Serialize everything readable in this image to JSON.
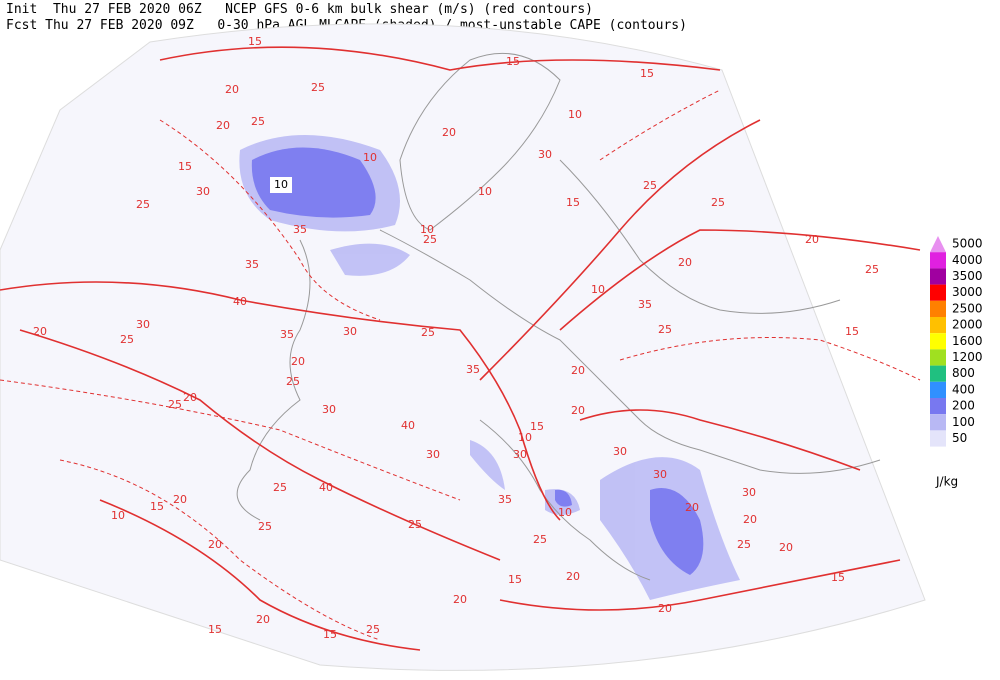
{
  "header": {
    "line1": "Init  Thu 27 FEB 2020 06Z   NCEP GFS 0-6 km bulk shear (m/s) (red contours)",
    "line2": "Fcst Thu 27 FEB 2020 09Z   0-30 hPa AGL MLCAPE (shaded) / most-unstable CAPE (contours)"
  },
  "map": {
    "contour_color": "#e03030",
    "contour_labels": [
      15,
      20,
      25,
      20,
      25,
      15,
      30,
      25,
      35,
      35,
      40,
      20,
      30,
      25,
      35,
      30,
      25,
      20,
      25,
      25,
      20,
      30,
      40,
      30,
      40,
      25,
      20,
      15,
      10,
      25,
      20,
      25,
      15,
      25,
      20,
      15,
      15,
      20,
      25,
      10,
      35,
      30,
      10,
      15,
      35,
      20,
      10,
      35,
      20,
      25,
      20,
      15,
      25,
      20,
      30,
      30,
      20,
      20,
      25,
      20,
      30,
      15,
      20,
      20,
      15,
      10,
      25,
      25,
      15,
      10,
      10,
      20,
      25,
      10,
      15,
      30
    ],
    "boxed_label": 10
  },
  "legend": {
    "unit": "J/kg",
    "levels": [
      {
        "value": 5000,
        "color": "#e890f0"
      },
      {
        "value": 4000,
        "color": "#e020e0"
      },
      {
        "value": 3500,
        "color": "#a000a0"
      },
      {
        "value": 3000,
        "color": "#ff0000"
      },
      {
        "value": 2500,
        "color": "#ff8000"
      },
      {
        "value": 2000,
        "color": "#ffc000"
      },
      {
        "value": 1600,
        "color": "#ffff00"
      },
      {
        "value": 1200,
        "color": "#a0e020"
      },
      {
        "value": 800,
        "color": "#20c080"
      },
      {
        "value": 400,
        "color": "#3090ff"
      },
      {
        "value": 200,
        "color": "#7878f0"
      },
      {
        "value": 100,
        "color": "#b8b8f4"
      },
      {
        "value": 50,
        "color": "#e4e4fa"
      }
    ]
  }
}
